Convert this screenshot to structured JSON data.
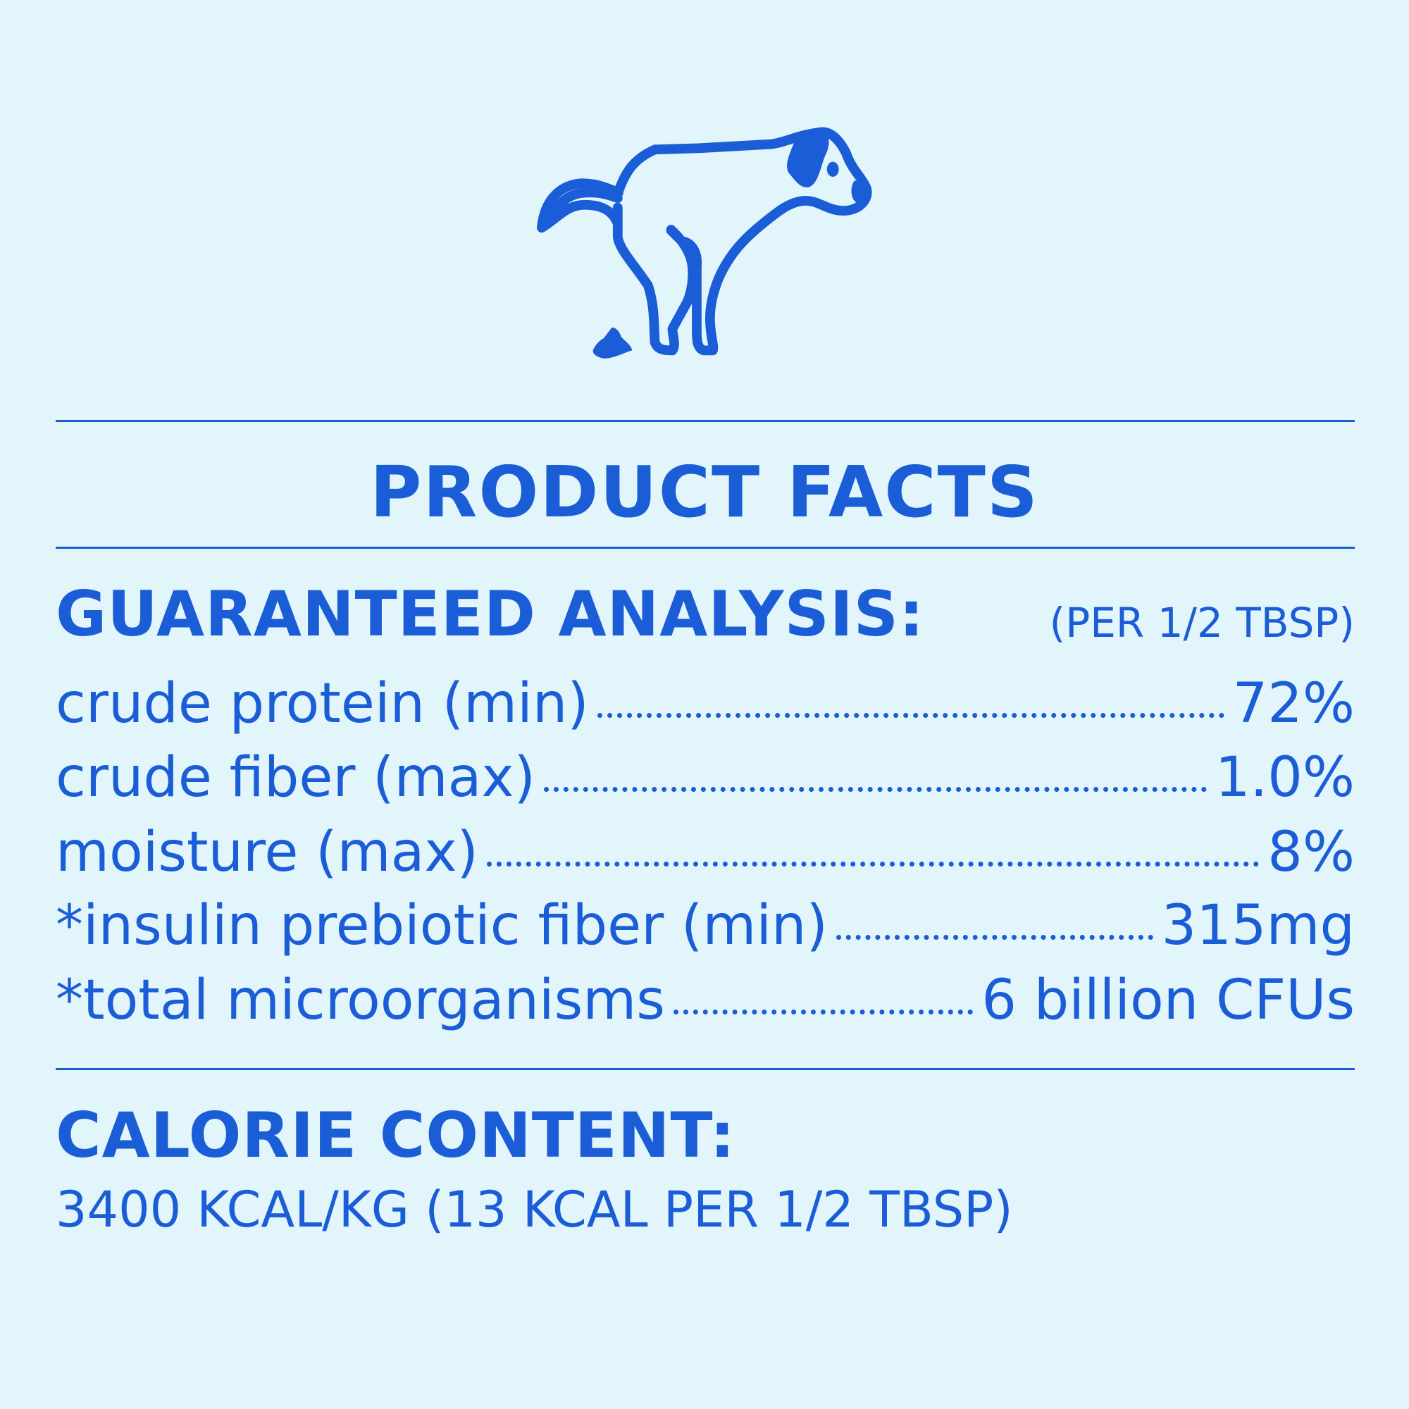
{
  "colors": {
    "accent": "#1a5dd6",
    "background": "#e1f5fb"
  },
  "illustration": "dog-pooping-icon",
  "title": "PRODUCT FACTS",
  "analysis": {
    "heading": "GUARANTEED ANALYSIS:",
    "serving": "(PER 1/2 TBSP)",
    "rows": [
      {
        "label": "crude protein (min)",
        "value": "72%"
      },
      {
        "label": "crude fiber (max)",
        "value": "1.0%"
      },
      {
        "label": "moisture (max)",
        "value": "8%"
      },
      {
        "label": "*insulin prebiotic fiber (min)",
        "value": "315mg"
      },
      {
        "label": "*total microorganisms",
        "value": "6 billion CFUs"
      }
    ]
  },
  "calorie": {
    "heading": "CALORIE CONTENT:",
    "value": "3400 KCAL/KG (13 KCAL PER 1/2 TBSP)"
  }
}
